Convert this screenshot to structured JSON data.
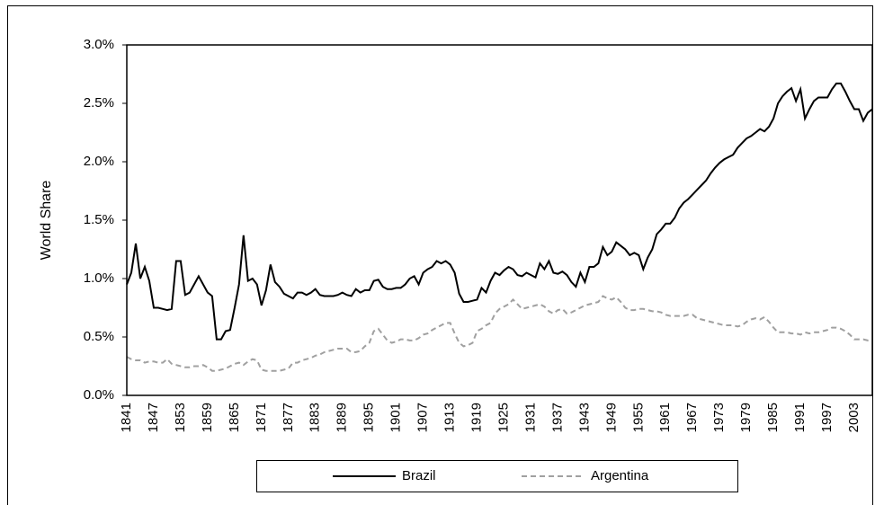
{
  "chart_data": {
    "type": "line",
    "ylabel": "World Share",
    "x": [
      1841,
      1842,
      1843,
      1844,
      1845,
      1846,
      1847,
      1848,
      1849,
      1850,
      1851,
      1852,
      1853,
      1854,
      1855,
      1856,
      1857,
      1858,
      1859,
      1860,
      1861,
      1862,
      1863,
      1864,
      1865,
      1866,
      1867,
      1868,
      1869,
      1870,
      1871,
      1872,
      1873,
      1874,
      1875,
      1876,
      1877,
      1878,
      1879,
      1880,
      1881,
      1882,
      1883,
      1884,
      1885,
      1886,
      1887,
      1888,
      1889,
      1890,
      1891,
      1892,
      1893,
      1894,
      1895,
      1896,
      1897,
      1898,
      1899,
      1900,
      1901,
      1902,
      1903,
      1904,
      1905,
      1906,
      1907,
      1908,
      1909,
      1910,
      1911,
      1912,
      1913,
      1914,
      1915,
      1916,
      1917,
      1918,
      1919,
      1920,
      1921,
      1922,
      1923,
      1924,
      1925,
      1926,
      1927,
      1928,
      1929,
      1930,
      1931,
      1932,
      1933,
      1934,
      1935,
      1936,
      1937,
      1938,
      1939,
      1940,
      1941,
      1942,
      1943,
      1944,
      1945,
      1946,
      1947,
      1948,
      1949,
      1950,
      1951,
      1952,
      1953,
      1954,
      1955,
      1956,
      1957,
      1958,
      1959,
      1960,
      1961,
      1962,
      1963,
      1964,
      1965,
      1966,
      1967,
      1968,
      1969,
      1970,
      1971,
      1972,
      1973,
      1974,
      1975,
      1976,
      1977,
      1978,
      1979,
      1980,
      1981,
      1982,
      1983,
      1984,
      1985,
      1986,
      1987,
      1988,
      1989,
      1990,
      1991,
      1992,
      1993,
      1994,
      1995,
      1996,
      1997,
      1998,
      1999,
      2000,
      2001,
      2002,
      2003,
      2004,
      2005,
      2006,
      2007
    ],
    "series": [
      {
        "name": "Brazil",
        "color": "#000000",
        "line_style": "solid",
        "values": [
          0.95,
          1.05,
          1.3,
          1.0,
          1.1,
          0.98,
          0.75,
          0.75,
          0.74,
          0.73,
          0.74,
          1.15,
          1.15,
          0.86,
          0.88,
          0.95,
          1.02,
          0.95,
          0.88,
          0.85,
          0.48,
          0.48,
          0.55,
          0.56,
          0.75,
          0.95,
          1.37,
          0.98,
          1.0,
          0.95,
          0.77,
          0.9,
          1.12,
          0.97,
          0.93,
          0.87,
          0.85,
          0.83,
          0.88,
          0.88,
          0.86,
          0.88,
          0.91,
          0.86,
          0.85,
          0.85,
          0.85,
          0.86,
          0.88,
          0.86,
          0.85,
          0.91,
          0.88,
          0.9,
          0.9,
          0.98,
          0.99,
          0.93,
          0.91,
          0.91,
          0.92,
          0.92,
          0.95,
          1.0,
          1.02,
          0.95,
          1.05,
          1.08,
          1.1,
          1.15,
          1.13,
          1.15,
          1.12,
          1.05,
          0.87,
          0.8,
          0.8,
          0.81,
          0.82,
          0.92,
          0.88,
          0.98,
          1.05,
          1.03,
          1.07,
          1.1,
          1.08,
          1.03,
          1.02,
          1.05,
          1.03,
          1.01,
          1.13,
          1.08,
          1.15,
          1.05,
          1.04,
          1.06,
          1.03,
          0.97,
          0.93,
          1.05,
          0.97,
          1.1,
          1.1,
          1.13,
          1.27,
          1.2,
          1.23,
          1.31,
          1.28,
          1.25,
          1.2,
          1.22,
          1.2,
          1.08,
          1.18,
          1.25,
          1.38,
          1.42,
          1.47,
          1.47,
          1.52,
          1.6,
          1.65,
          1.68,
          1.72,
          1.76,
          1.8,
          1.84,
          1.9,
          1.95,
          1.99,
          2.02,
          2.04,
          2.06,
          2.12,
          2.16,
          2.2,
          2.22,
          2.25,
          2.28,
          2.26,
          2.3,
          2.37,
          2.5,
          2.56,
          2.6,
          2.63,
          2.52,
          2.62,
          2.37,
          2.45,
          2.52,
          2.55,
          2.55,
          2.55,
          2.62,
          2.67,
          2.67,
          2.6,
          2.52,
          2.45,
          2.45,
          2.35,
          2.42,
          2.45
        ]
      },
      {
        "name": "Argentina",
        "color": "#a0a0a0",
        "line_style": "dashed",
        "values": [
          0.33,
          0.31,
          0.3,
          0.3,
          0.28,
          0.29,
          0.29,
          0.28,
          0.28,
          0.31,
          0.27,
          0.26,
          0.25,
          0.24,
          0.24,
          0.25,
          0.25,
          0.26,
          0.24,
          0.21,
          0.21,
          0.22,
          0.23,
          0.25,
          0.27,
          0.28,
          0.26,
          0.29,
          0.31,
          0.3,
          0.22,
          0.21,
          0.21,
          0.21,
          0.21,
          0.22,
          0.23,
          0.28,
          0.28,
          0.3,
          0.31,
          0.32,
          0.34,
          0.35,
          0.37,
          0.38,
          0.39,
          0.4,
          0.4,
          0.4,
          0.37,
          0.37,
          0.38,
          0.42,
          0.45,
          0.55,
          0.57,
          0.52,
          0.47,
          0.45,
          0.46,
          0.48,
          0.48,
          0.47,
          0.47,
          0.49,
          0.52,
          0.53,
          0.56,
          0.58,
          0.6,
          0.62,
          0.62,
          0.53,
          0.45,
          0.42,
          0.43,
          0.45,
          0.55,
          0.57,
          0.6,
          0.62,
          0.7,
          0.74,
          0.76,
          0.78,
          0.82,
          0.78,
          0.74,
          0.75,
          0.76,
          0.77,
          0.78,
          0.76,
          0.72,
          0.7,
          0.73,
          0.74,
          0.7,
          0.71,
          0.73,
          0.75,
          0.77,
          0.78,
          0.79,
          0.8,
          0.85,
          0.83,
          0.82,
          0.84,
          0.8,
          0.75,
          0.73,
          0.73,
          0.74,
          0.74,
          0.73,
          0.72,
          0.72,
          0.71,
          0.69,
          0.68,
          0.68,
          0.68,
          0.68,
          0.69,
          0.69,
          0.66,
          0.65,
          0.64,
          0.63,
          0.62,
          0.61,
          0.6,
          0.6,
          0.6,
          0.59,
          0.6,
          0.63,
          0.65,
          0.66,
          0.65,
          0.67,
          0.63,
          0.58,
          0.54,
          0.54,
          0.54,
          0.53,
          0.53,
          0.52,
          0.54,
          0.53,
          0.54,
          0.54,
          0.55,
          0.56,
          0.58,
          0.58,
          0.57,
          0.55,
          0.52,
          0.48,
          0.48,
          0.48,
          0.47,
          0.47
        ]
      }
    ],
    "xlim": [
      1841,
      2007
    ],
    "xticks": [
      1841,
      1847,
      1853,
      1859,
      1865,
      1871,
      1877,
      1883,
      1889,
      1895,
      1901,
      1907,
      1913,
      1919,
      1925,
      1931,
      1937,
      1943,
      1949,
      1955,
      1961,
      1967,
      1973,
      1979,
      1985,
      1991,
      1997,
      2003
    ],
    "ylim": [
      0,
      3
    ],
    "yticks": [
      {
        "value": 0,
        "label": "0.0%"
      },
      {
        "value": 0.5,
        "label": "0.5%"
      },
      {
        "value": 1,
        "label": "1.0%"
      },
      {
        "value": 1.5,
        "label": "1.5%"
      },
      {
        "value": 2,
        "label": "2.0%"
      },
      {
        "value": 2.5,
        "label": "2.5%"
      },
      {
        "value": 3,
        "label": "3.0%"
      }
    ],
    "grid": false,
    "legend": "bottom"
  }
}
